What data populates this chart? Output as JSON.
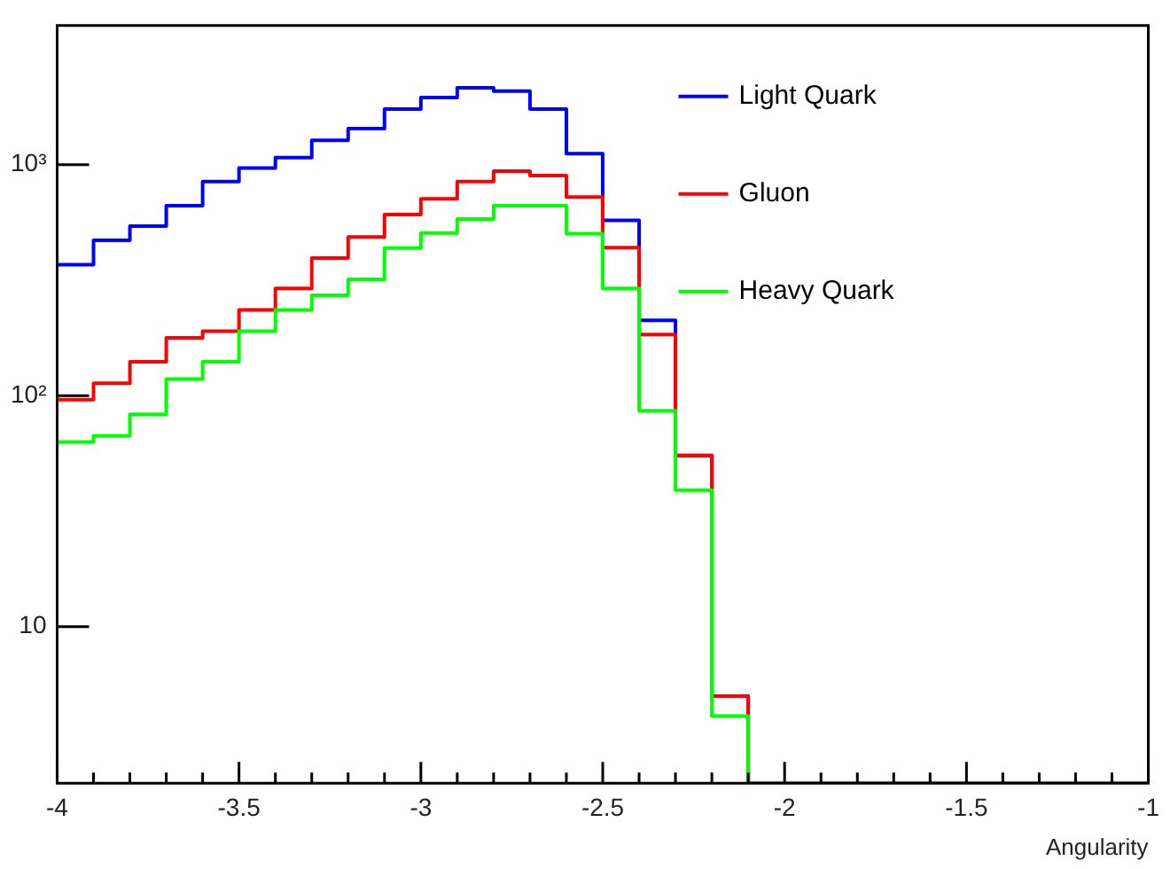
{
  "chart_data": {
    "type": "histogram",
    "xlabel": "Angularity",
    "log": true,
    "legend": "top right",
    "marker": "none",
    "bins": [
      -4,
      -3.9,
      -3.8,
      -3.7,
      -3.6,
      -3.5,
      -3.4,
      -3.3,
      -3.2,
      -3.1,
      -3,
      -2.9,
      -2.8,
      -2.7,
      -2.6,
      -2.5,
      -2.4,
      -2.3,
      -2.2,
      -2.1,
      -2,
      -1.9,
      -1.8,
      -1.7,
      -1.6,
      -1.5,
      -1.4,
      -1.3,
      -1.2,
      -1.1,
      -1
    ],
    "series": [
      {
        "name": "Light Quark",
        "color": "#0000ff",
        "values": [
          369,
          470,
          542,
          664,
          845,
          966,
          1072,
          1274,
          1431,
          1740,
          1950,
          2150,
          2080,
          1740,
          1115,
          574,
          212,
          55,
          5,
          null,
          null,
          null,
          null,
          null,
          null,
          null,
          null,
          null,
          null,
          null
        ]
      },
      {
        "name": "Gluon",
        "color": "#ff0000",
        "values": [
          96,
          113,
          140,
          178,
          190,
          235,
          291,
          394,
          486,
          608,
          711,
          845,
          938,
          897,
          724,
          437,
          184,
          55,
          5,
          null,
          null,
          null,
          null,
          null,
          null,
          null,
          null,
          null,
          null,
          null
        ]
      },
      {
        "name": "Heavy Quark",
        "color": "#00ff00",
        "values": [
          63,
          67,
          83,
          118,
          140,
          190,
          235,
          272,
          319,
          435,
          506,
          581,
          664,
          664,
          503,
          291,
          86,
          39,
          4.1,
          null,
          null,
          null,
          null,
          null,
          null,
          null,
          null,
          null,
          null,
          null
        ]
      }
    ],
    "xlim": [
      -4,
      -1
    ],
    "xticks": [
      -4,
      {
        "value": -3.9,
        "label": null
      },
      {
        "value": -3.8,
        "label": null
      },
      {
        "value": -3.7,
        "label": null
      },
      {
        "value": -3.6,
        "label": null
      },
      -3.5,
      {
        "value": -3.4,
        "label": null
      },
      {
        "value": -3.3,
        "label": null
      },
      {
        "value": -3.2,
        "label": null
      },
      {
        "value": -3.1,
        "label": null
      },
      -3,
      {
        "value": -2.9,
        "label": null
      },
      {
        "value": -2.8,
        "label": null
      },
      {
        "value": -2.7,
        "label": null
      },
      {
        "value": -2.6,
        "label": null
      },
      -2.5,
      {
        "value": -2.4,
        "label": null
      },
      {
        "value": -2.3,
        "label": null
      },
      {
        "value": -2.2,
        "label": null
      },
      {
        "value": -2.1,
        "label": null
      },
      -2,
      {
        "value": -1.9,
        "label": null
      },
      {
        "value": -1.8,
        "label": null
      },
      {
        "value": -1.7,
        "label": null
      },
      {
        "value": -1.6,
        "label": null
      },
      -1.5,
      {
        "value": -1.4,
        "label": null
      },
      {
        "value": -1.3,
        "label": null
      },
      {
        "value": -1.2,
        "label": null
      },
      {
        "value": -1.1,
        "label": null
      },
      -1
    ],
    "ylim": [
      2.1,
      4000
    ],
    "yticks": [
      10,
      {
        "value": 100,
        "label": "10²"
      },
      {
        "value": 1000,
        "label": "10³"
      }
    ]
  }
}
